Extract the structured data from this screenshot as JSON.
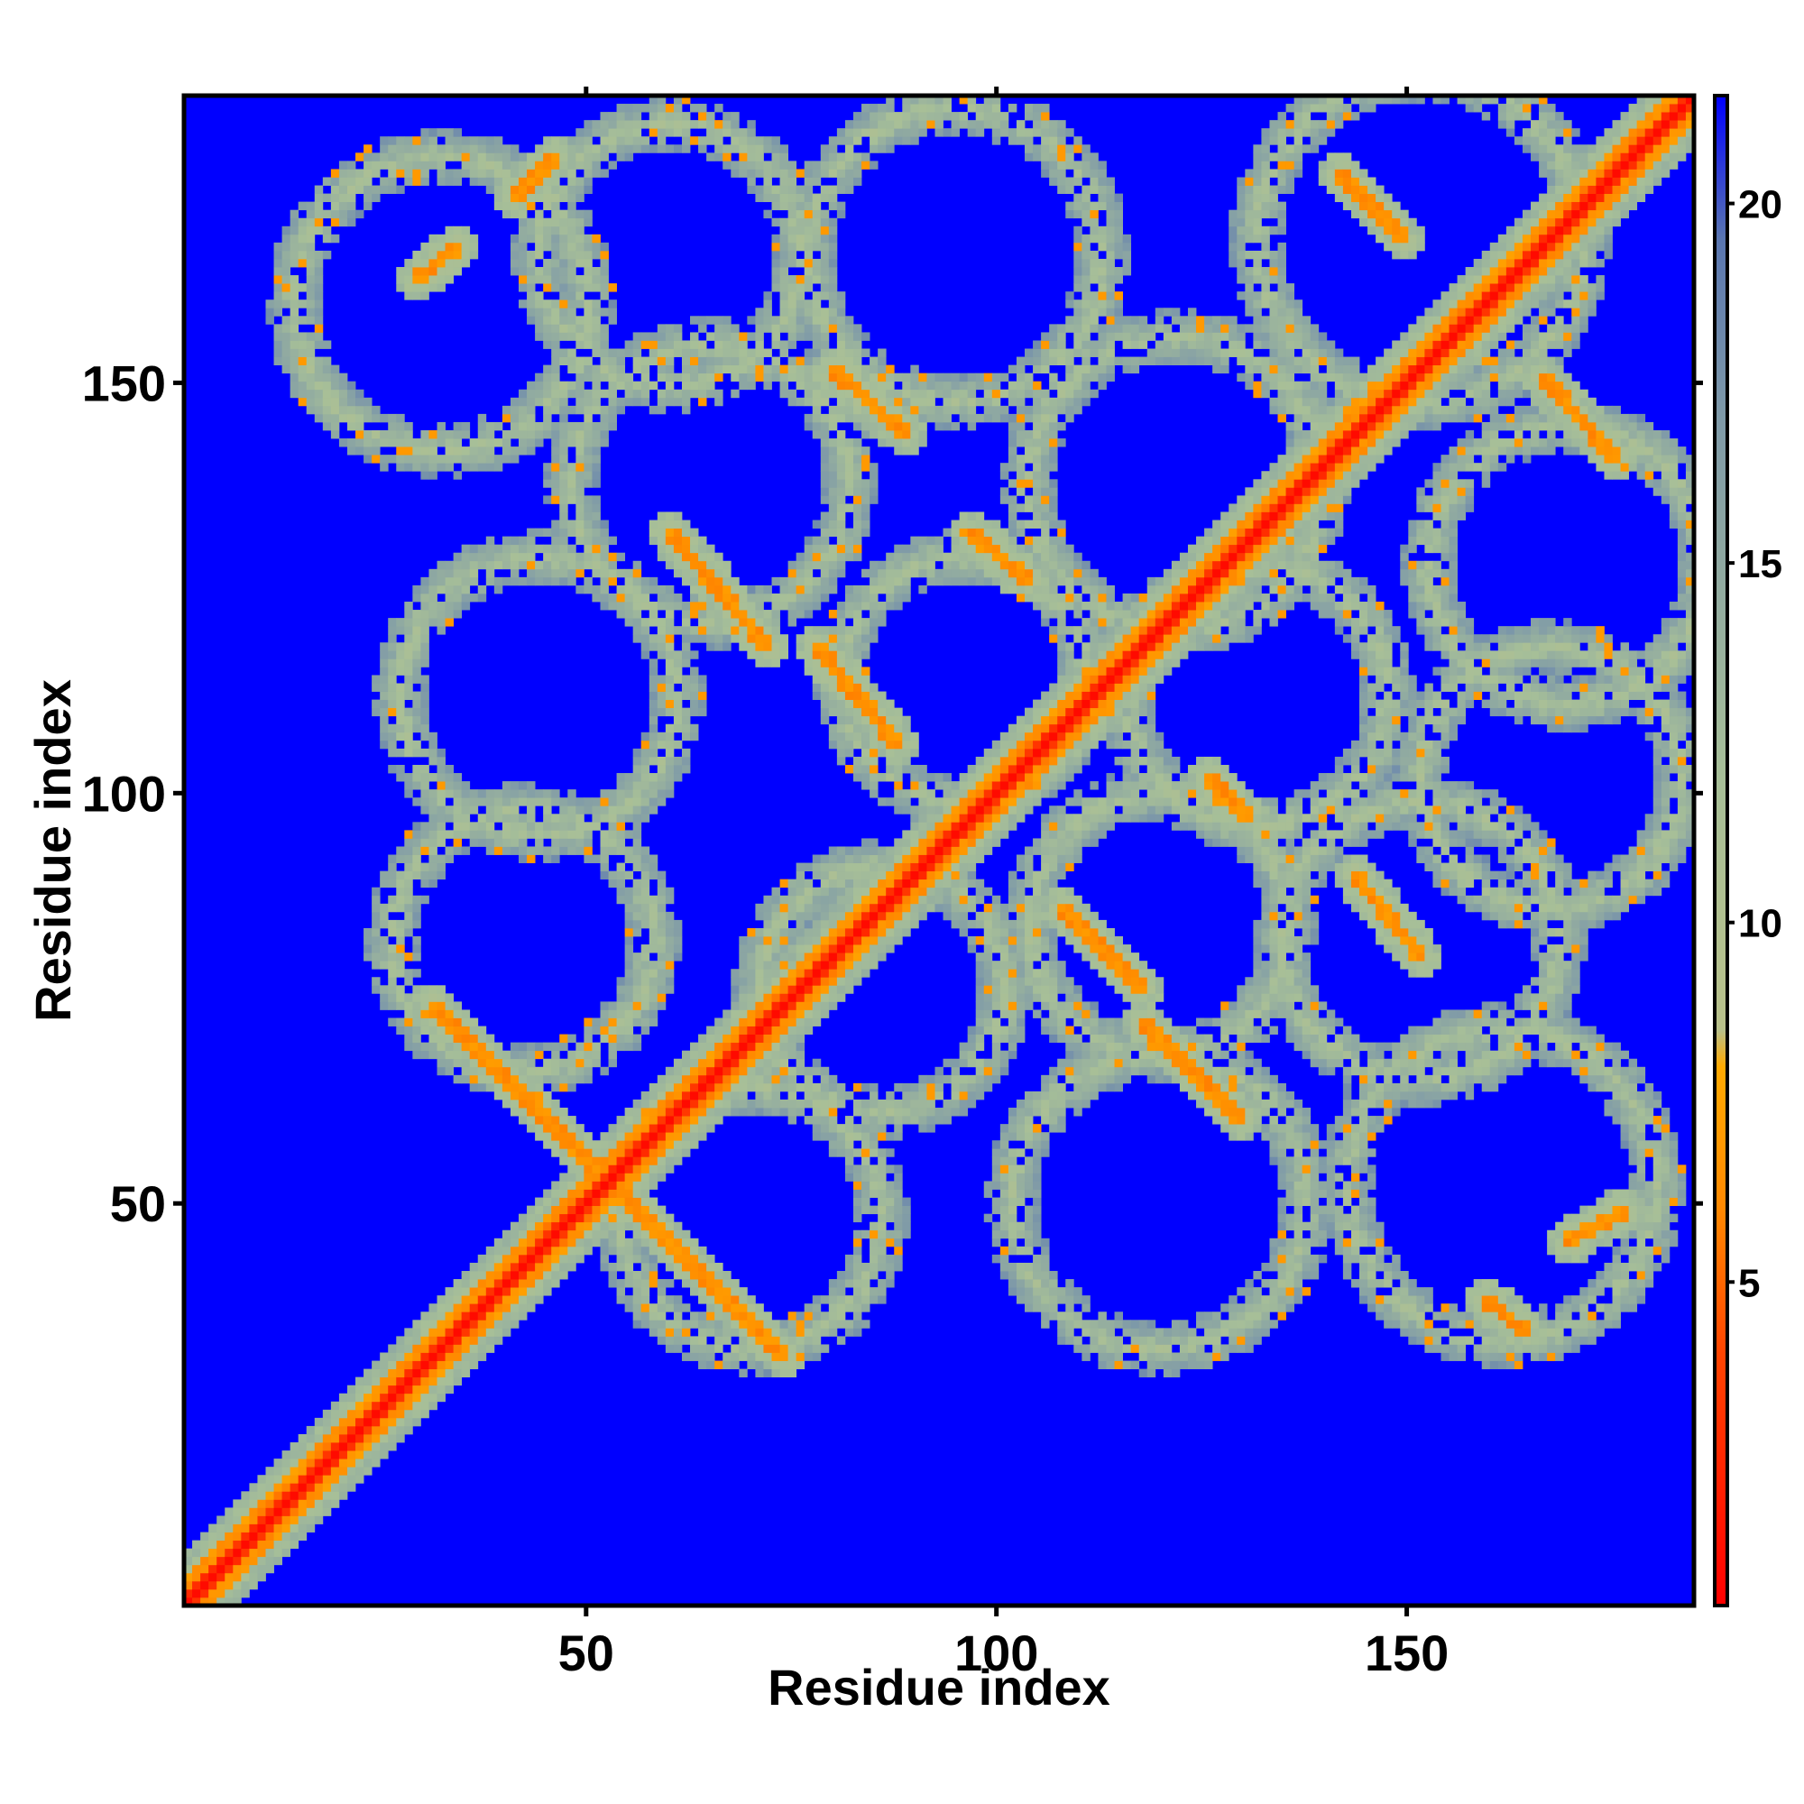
{
  "chart_data": {
    "type": "heatmap",
    "title": "",
    "xlabel": "Residue index",
    "ylabel": "Residue index",
    "xlim": [
      1,
      185
    ],
    "ylim": [
      1,
      185
    ],
    "xticks": [
      50,
      100,
      150
    ],
    "yticks": [
      50,
      100,
      150
    ],
    "colorbar": {
      "ticks": [
        5,
        10,
        15,
        20
      ],
      "range": [
        0.5,
        21.5
      ],
      "colors": [
        {
          "value": 0.5,
          "color": "#ff0000"
        },
        {
          "value": 4.0,
          "color": "#ff4400"
        },
        {
          "value": 6.0,
          "color": "#ff8800"
        },
        {
          "value": 8.0,
          "color": "#ffaa00"
        },
        {
          "value": 8.5,
          "color": "#b8c08a"
        },
        {
          "value": 12.0,
          "color": "#a7bf98"
        },
        {
          "value": 17.0,
          "color": "#7f9aa8"
        },
        {
          "value": 19.5,
          "color": "#5a76b0"
        },
        {
          "value": 21.5,
          "color": "#0000ff"
        }
      ]
    },
    "n_residues": 185,
    "diagonal_value": 2.5,
    "background_value": 21,
    "contact_bands": [
      {
        "from": [
          31,
          74
        ],
        "to": [
          55,
          50
        ],
        "value": 6.5
      },
      {
        "from": [
          55,
          50
        ],
        "to": [
          74,
          31
        ],
        "value": 6.5
      },
      {
        "from": [
          60,
          132
        ],
        "to": [
          72,
          118
        ],
        "value": 6.5
      },
      {
        "from": [
          78,
          118
        ],
        "to": [
          88,
          106
        ],
        "value": 6.5
      },
      {
        "from": [
          80,
          152
        ],
        "to": [
          89,
          144
        ],
        "value": 6.5
      },
      {
        "from": [
          97,
          132
        ],
        "to": [
          104,
          126
        ],
        "value": 6.5
      },
      {
        "from": [
          108,
          86
        ],
        "to": [
          118,
          76
        ],
        "value": 6.5
      },
      {
        "from": [
          118,
          72
        ],
        "to": [
          130,
          60
        ],
        "value": 6.5
      },
      {
        "from": [
          126,
          102
        ],
        "to": [
          131,
          97
        ],
        "value": 6.5
      },
      {
        "from": [
          142,
          176
        ],
        "to": [
          150,
          168
        ],
        "value": 6.5
      },
      {
        "from": [
          144,
          90
        ],
        "to": [
          152,
          80
        ],
        "value": 6.5
      },
      {
        "from": [
          167,
          151
        ],
        "to": [
          176,
          141
        ],
        "value": 6.5
      },
      {
        "from": [
          160,
          38
        ],
        "to": [
          165,
          34
        ],
        "value": 6.5
      },
      {
        "from": [
          170,
          45
        ],
        "to": [
          177,
          49
        ],
        "value": 6.5
      },
      {
        "from": [
          29,
          163
        ],
        "to": [
          34,
          167
        ],
        "value": 6.5
      },
      {
        "from": [
          41,
          173
        ],
        "to": [
          46,
          178
        ],
        "value": 6.5
      }
    ],
    "contact_loops": [
      {
        "center": [
          32,
          160
        ],
        "radius": 18,
        "value": 12
      },
      {
        "center": [
          60,
          166
        ],
        "radius": 16,
        "value": 12
      },
      {
        "center": [
          95,
          166
        ],
        "radius": 18,
        "value": 12
      },
      {
        "center": [
          152,
          168
        ],
        "radius": 20,
        "value": 12
      },
      {
        "center": [
          65,
          138
        ],
        "radius": 17,
        "value": 12
      },
      {
        "center": [
          122,
          138
        ],
        "radius": 18,
        "value": 12
      },
      {
        "center": [
          170,
          128
        ],
        "radius": 17,
        "value": 12
      },
      {
        "center": [
          44,
          112
        ],
        "radius": 17,
        "value": 12
      },
      {
        "center": [
          96,
          114
        ],
        "radius": 15,
        "value": 12
      },
      {
        "center": [
          132,
          112
        ],
        "radius": 16,
        "value": 12
      },
      {
        "center": [
          168,
          102
        ],
        "radius": 16,
        "value": 12
      },
      {
        "center": [
          42,
          82
        ],
        "radius": 16,
        "value": 12
      },
      {
        "center": [
          86,
          76
        ],
        "radius": 15,
        "value": 12
      },
      {
        "center": [
          120,
          84
        ],
        "radius": 16,
        "value": 12
      },
      {
        "center": [
          152,
          82
        ],
        "radius": 17,
        "value": 12
      },
      {
        "center": [
          70,
          48
        ],
        "radius": 16,
        "value": 12
      },
      {
        "center": [
          120,
          50
        ],
        "radius": 18,
        "value": 12
      },
      {
        "center": [
          162,
          52
        ],
        "radius": 19,
        "value": 12
      }
    ]
  }
}
